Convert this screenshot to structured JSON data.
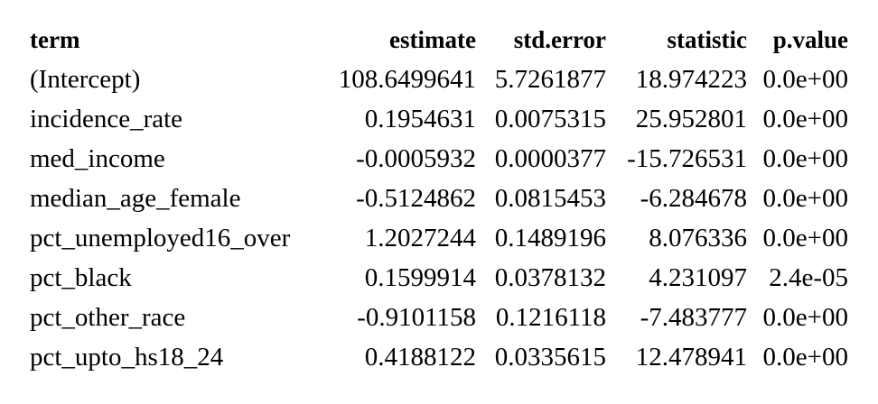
{
  "table": {
    "headers": [
      "term",
      "estimate",
      "std.error",
      "statistic",
      "p.value"
    ],
    "rows": [
      [
        "(Intercept)",
        "108.6499641",
        "5.7261877",
        "18.974223",
        "0.0e+00"
      ],
      [
        "incidence_rate",
        "0.1954631",
        "0.0075315",
        "25.952801",
        "0.0e+00"
      ],
      [
        "med_income",
        "-0.0005932",
        "0.0000377",
        "-15.726531",
        "0.0e+00"
      ],
      [
        "median_age_female",
        "-0.5124862",
        "0.0815453",
        "-6.284678",
        "0.0e+00"
      ],
      [
        "pct_unemployed16_over",
        "1.2027244",
        "0.1489196",
        "8.076336",
        "0.0e+00"
      ],
      [
        "pct_black",
        "0.1599914",
        "0.0378132",
        "4.231097",
        "2.4e-05"
      ],
      [
        "pct_other_race",
        "-0.9101158",
        "0.1216118",
        "-7.483777",
        "0.0e+00"
      ],
      [
        "pct_upto_hs18_24",
        "0.4188122",
        "0.0335615",
        "12.478941",
        "0.0e+00"
      ]
    ]
  }
}
